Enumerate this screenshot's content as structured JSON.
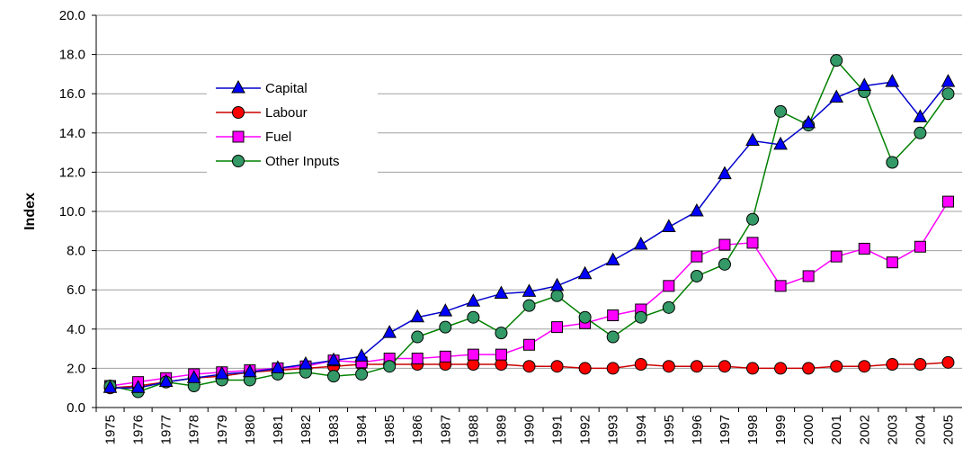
{
  "chart_data": {
    "type": "line",
    "y_label": "Index",
    "categories": [
      "1975",
      "1976",
      "1977",
      "1978",
      "1979",
      "1980",
      "1981",
      "1982",
      "1983",
      "1984",
      "1985",
      "1986",
      "1987",
      "1988",
      "1989",
      "1990",
      "1991",
      "1992",
      "1993",
      "1994",
      "1995",
      "1996",
      "1997",
      "1998",
      "1999",
      "2000",
      "2001",
      "2002",
      "2003",
      "2004",
      "2005"
    ],
    "series": [
      {
        "name": "Capital",
        "color": "#0000ff",
        "line_color": "#0000cc",
        "marker": "triangle",
        "values": [
          1.0,
          1.0,
          1.3,
          1.5,
          1.7,
          1.8,
          2.0,
          2.2,
          2.4,
          2.6,
          3.8,
          4.6,
          4.9,
          5.4,
          5.8,
          5.9,
          6.2,
          6.8,
          7.5,
          8.3,
          9.2,
          10.0,
          11.9,
          13.6,
          13.4,
          14.5,
          15.8,
          16.4,
          16.6,
          14.8,
          16.6
        ]
      },
      {
        "name": "Labour",
        "color": "#ff0000",
        "line_color": "#cc0000",
        "marker": "circle",
        "values": [
          1.0,
          1.1,
          1.3,
          1.5,
          1.6,
          1.8,
          1.9,
          2.0,
          2.1,
          2.2,
          2.2,
          2.2,
          2.2,
          2.2,
          2.2,
          2.1,
          2.1,
          2.0,
          2.0,
          2.2,
          2.1,
          2.1,
          2.1,
          2.0,
          2.0,
          2.0,
          2.1,
          2.1,
          2.2,
          2.2,
          2.3
        ]
      },
      {
        "name": "Fuel",
        "color": "#ff00ff",
        "line_color": "#ff00ff",
        "marker": "square",
        "values": [
          1.1,
          1.3,
          1.5,
          1.7,
          1.8,
          1.9,
          2.0,
          2.1,
          2.4,
          2.3,
          2.5,
          2.5,
          2.6,
          2.7,
          2.7,
          3.2,
          4.1,
          4.3,
          4.7,
          5.0,
          6.2,
          7.7,
          8.3,
          8.4,
          6.2,
          6.7,
          7.7,
          8.1,
          7.4,
          8.2,
          10.5
        ]
      },
      {
        "name": "Other Inputs",
        "color": "#339966",
        "line_color": "#008000",
        "marker": "circle",
        "values": [
          1.1,
          0.8,
          1.3,
          1.1,
          1.4,
          1.4,
          1.7,
          1.8,
          1.6,
          1.7,
          2.1,
          3.6,
          4.1,
          4.6,
          3.8,
          5.2,
          5.7,
          4.6,
          3.6,
          4.6,
          5.1,
          6.7,
          7.3,
          9.6,
          15.1,
          14.4,
          17.7,
          16.1,
          12.5,
          14.0,
          16.0
        ]
      }
    ],
    "ylim": [
      0,
      20
    ],
    "yticks": [
      {
        "value": 0,
        "label": "0.0"
      },
      {
        "value": 2,
        "label": "2.0"
      },
      {
        "value": 4,
        "label": "4.0"
      },
      {
        "value": 6,
        "label": "6.0"
      },
      {
        "value": 8,
        "label": "8.0"
      },
      {
        "value": 10,
        "label": "10.0"
      },
      {
        "value": 12,
        "label": "12.0"
      },
      {
        "value": 14,
        "label": "14.0"
      },
      {
        "value": 16,
        "label": "16.0"
      },
      {
        "value": 18,
        "label": "18.0"
      },
      {
        "value": 20,
        "label": "20.0"
      }
    ],
    "grid": true
  }
}
